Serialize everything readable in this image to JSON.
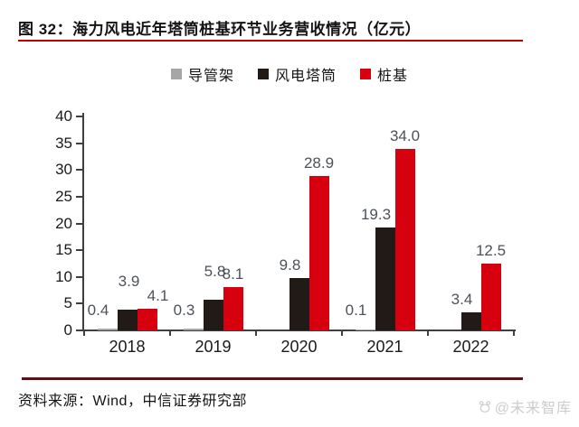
{
  "title": {
    "text": "图 32：海力风电近年塔筒桩基环节业务营收情况（亿元）"
  },
  "colors": {
    "title_underline": "#c00000",
    "bottom_rule": "#5c1212",
    "axis": "#3f3f3f",
    "value_label": "#4d5259",
    "watermark": "#cccccc"
  },
  "chart_data": {
    "type": "bar",
    "title": "海力风电近年塔筒桩基环节业务营收情况（亿元）",
    "categories": [
      "2018",
      "2019",
      "2020",
      "2021",
      "2022"
    ],
    "series": [
      {
        "name": "导管架",
        "color": "#a6a6a6",
        "values": [
          0.4,
          0.3,
          null,
          0.1,
          null
        ],
        "labels": [
          "0.4",
          "0.3",
          "",
          "0.1",
          ""
        ]
      },
      {
        "name": "风电塔筒",
        "color": "#211a16",
        "values": [
          3.9,
          5.8,
          9.8,
          19.3,
          3.4
        ],
        "labels": [
          "3.9",
          "5.8",
          "9.8",
          "19.3",
          "3.4"
        ]
      },
      {
        "name": "桩基",
        "color": "#d7000f",
        "values": [
          4.1,
          8.1,
          28.9,
          34.0,
          12.5
        ],
        "labels": [
          "4.1",
          "8.1",
          "28.9",
          "34.0",
          "12.5"
        ]
      }
    ],
    "xlabel": "",
    "ylabel": "",
    "ylim": [
      0,
      40
    ],
    "yticks": [
      0,
      5,
      10,
      15,
      20,
      25,
      30,
      35,
      40
    ],
    "grid": false,
    "legend_position": "top"
  },
  "source": {
    "text": "资料来源：Wind，中信证券研究部"
  },
  "watermark": {
    "text": "@未来智库"
  }
}
